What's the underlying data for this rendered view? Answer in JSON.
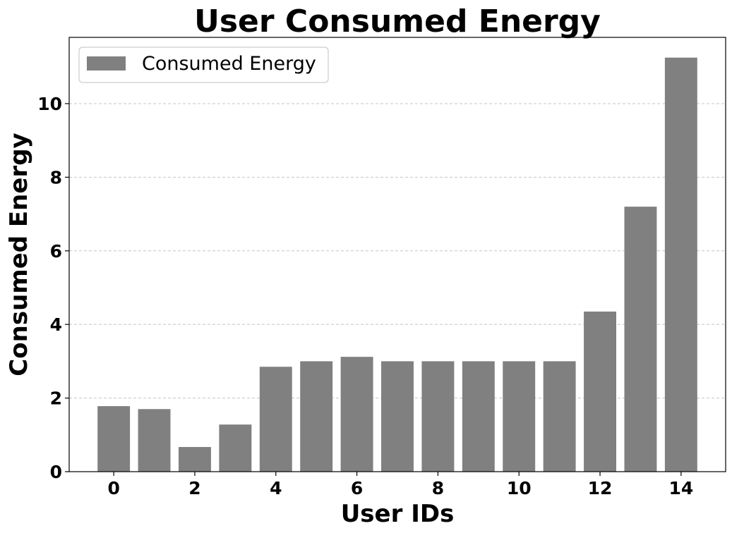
{
  "chart_data": {
    "type": "bar",
    "title": "User Consumed Energy",
    "xlabel": "User IDs",
    "ylabel": "Consumed Energy",
    "categories": [
      0,
      1,
      2,
      3,
      4,
      5,
      6,
      7,
      8,
      9,
      10,
      11,
      12,
      13,
      14
    ],
    "series": [
      {
        "name": "Consumed Energy",
        "values": [
          1.78,
          1.7,
          0.67,
          1.28,
          2.85,
          3.0,
          3.12,
          3.0,
          3.0,
          3.0,
          3.0,
          3.0,
          4.35,
          7.2,
          11.25
        ],
        "color": "#808080"
      }
    ],
    "x_ticks": [
      0,
      2,
      4,
      6,
      8,
      10,
      12,
      14
    ],
    "y_ticks": [
      0,
      2,
      4,
      6,
      8,
      10
    ],
    "xlim": [
      -1.1,
      15.1
    ],
    "ylim": [
      0,
      11.8
    ],
    "grid": "y-dashed",
    "legend_position": "top-left"
  }
}
